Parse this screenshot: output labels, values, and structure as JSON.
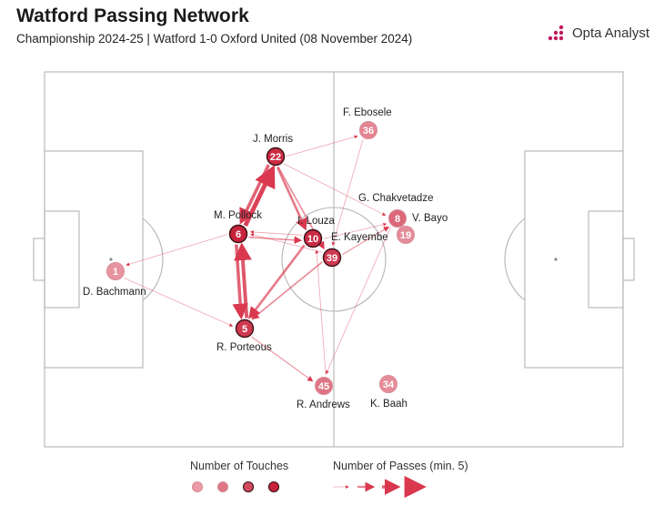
{
  "header": {
    "title": "Watford Passing Network",
    "subtitle": "Championship 2024-25 | Watford 1-0 Oxford United (08 November 2024)",
    "brand": "Opta Analyst",
    "brand_logo_icon": "opta-dots-logo-icon",
    "brand_color": "#c2185b"
  },
  "legend": {
    "touches_label": "Number of Touches",
    "passes_label": "Number of Passes (min. 5)"
  },
  "colors": {
    "accent": "#d9384f",
    "node_dark": "#c8233c",
    "node_light": "#f2b9c1",
    "pitch_line": "#b5b5b5"
  },
  "chart_data": {
    "type": "network",
    "nodes": [
      {
        "id": "1",
        "name": "D. Bachmann",
        "touch_level": 0.25
      },
      {
        "id": "22",
        "name": "J. Morris",
        "touch_level": 0.95
      },
      {
        "id": "6",
        "name": "M. Pollock",
        "touch_level": 1.0
      },
      {
        "id": "10",
        "name": "I. Louza",
        "touch_level": 0.95
      },
      {
        "id": "39",
        "name": "E. Kayembe",
        "touch_level": 0.85
      },
      {
        "id": "5",
        "name": "R. Porteous",
        "touch_level": 0.85
      },
      {
        "id": "36",
        "name": "F. Ebosele",
        "touch_level": 0.35
      },
      {
        "id": "8",
        "name": "V. Bayo",
        "touch_level": 0.55
      },
      {
        "id": "19",
        "name": "G. Chakvetadze",
        "touch_level": 0.3
      },
      {
        "id": "45",
        "name": "R. Andrews",
        "touch_level": 0.45
      },
      {
        "id": "34",
        "name": "K. Baah",
        "touch_level": 0.3
      }
    ],
    "edges": [
      {
        "from": "6",
        "to": "22",
        "passes": 14
      },
      {
        "from": "22",
        "to": "6",
        "passes": 11
      },
      {
        "from": "22",
        "to": "10",
        "passes": 9
      },
      {
        "from": "22",
        "to": "39",
        "passes": 7
      },
      {
        "from": "22",
        "to": "36",
        "passes": 5
      },
      {
        "from": "22",
        "to": "8",
        "passes": 5
      },
      {
        "from": "5",
        "to": "6",
        "passes": 12
      },
      {
        "from": "6",
        "to": "5",
        "passes": 11
      },
      {
        "from": "6",
        "to": "10",
        "passes": 7
      },
      {
        "from": "10",
        "to": "6",
        "passes": 5
      },
      {
        "from": "10",
        "to": "5",
        "passes": 9
      },
      {
        "from": "39",
        "to": "5",
        "passes": 7
      },
      {
        "from": "39",
        "to": "6",
        "passes": 5
      },
      {
        "from": "39",
        "to": "8",
        "passes": 6
      },
      {
        "from": "10",
        "to": "8",
        "passes": 5
      },
      {
        "from": "6",
        "to": "1",
        "passes": 5
      },
      {
        "from": "1",
        "to": "5",
        "passes": 5
      },
      {
        "from": "5",
        "to": "45",
        "passes": 6
      },
      {
        "from": "8",
        "to": "45",
        "passes": 5
      },
      {
        "from": "36",
        "to": "39",
        "passes": 5
      },
      {
        "from": "45",
        "to": "10",
        "passes": 5
      }
    ],
    "legend_touch_levels": [
      0.2,
      0.45,
      0.75,
      1.0
    ],
    "legend_pass_levels": [
      5,
      8,
      11,
      14
    ]
  }
}
